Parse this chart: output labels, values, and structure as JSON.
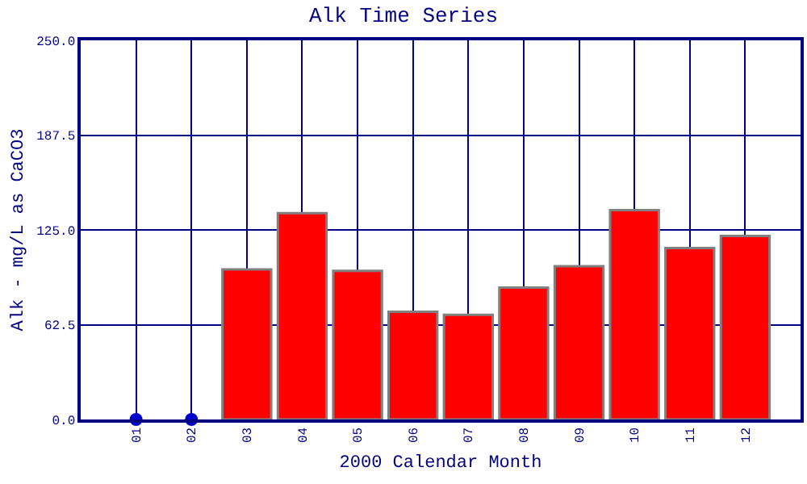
{
  "chart_data": {
    "type": "bar",
    "title": "Alk Time Series",
    "xlabel": "2000 Calendar Month",
    "ylabel": "Alk - mg/L as CaCO3",
    "categories": [
      "01",
      "02",
      "03",
      "04",
      "05",
      "06",
      "07",
      "08",
      "09",
      "10",
      "11",
      "12"
    ],
    "series": [
      {
        "color": "#ff0000",
        "values": [
          null,
          null,
          99,
          136,
          98,
          71,
          69,
          87,
          101,
          138,
          113,
          121
        ]
      },
      {
        "type": "scatter",
        "color": "#0000cc",
        "marker": "circle",
        "x": [
          "01",
          "02"
        ],
        "values": [
          0,
          0
        ]
      }
    ],
    "ylim": [
      0,
      250
    ],
    "yticks": [
      {
        "value": 0,
        "label": "0.0"
      },
      {
        "value": 62.5,
        "label": "62.5"
      },
      {
        "value": 125,
        "label": "125.0"
      },
      {
        "value": 187.5,
        "label": "187.5"
      },
      {
        "value": 250,
        "label": "250.0"
      }
    ],
    "grid": true
  }
}
